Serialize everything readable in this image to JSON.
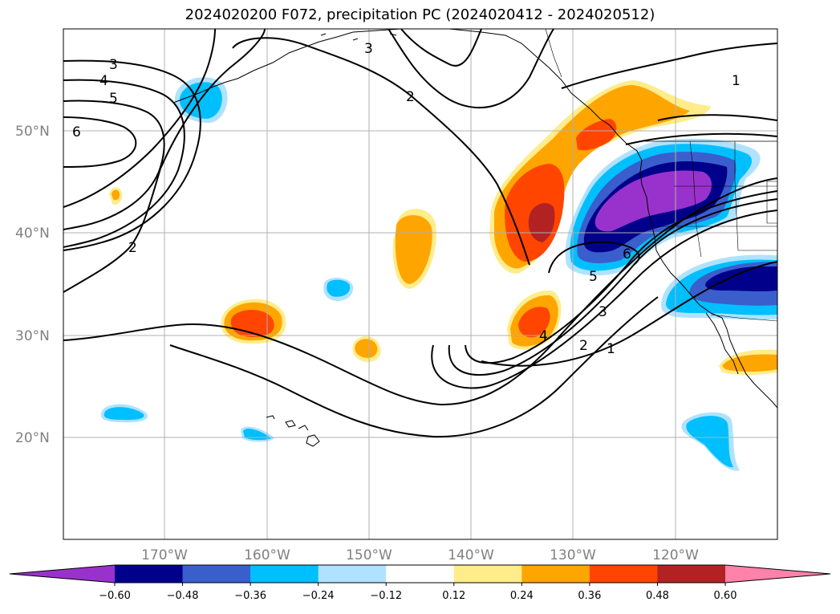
{
  "title": "2024020200 F072, precipitation PC (2024020412 - 2024020512)",
  "lat_labels": [
    "50°N",
    "40°N",
    "30°N",
    "20°N"
  ],
  "lon_labels": [
    "170°W",
    "160°W",
    "150°W",
    "140°W",
    "130°W",
    "120°W"
  ],
  "colorbar": {
    "tick_labels": [
      "−0.60",
      "−0.48",
      "−0.36",
      "−0.24",
      "−0.12",
      "0.12",
      "0.24",
      "0.36",
      "0.48",
      "0.60"
    ],
    "colors": [
      "#9932cc",
      "#00008b",
      "#3a5fcd",
      "#00bfff",
      "#b0e2ff",
      "#ffffff",
      "#ffec8b",
      "#ffa500",
      "#ff4500",
      "#b22222",
      "#ff82ab"
    ]
  },
  "contour_labels": [
    "3",
    "4",
    "5",
    "6",
    "2",
    "3",
    "2",
    "1",
    "1",
    "2",
    "3",
    "4",
    "5",
    "6"
  ]
}
